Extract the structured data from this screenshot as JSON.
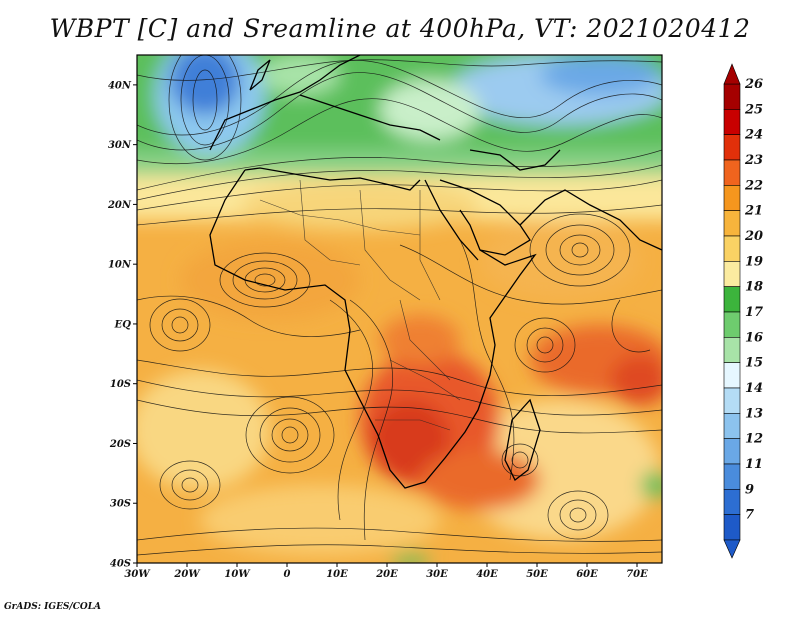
{
  "title": "WBPT [C] and Sreamline at 400hPa, VT: 2021020412",
  "credit": "GrADS: IGES/COLA",
  "map": {
    "lat_labels": [
      "40N",
      "30N",
      "20N",
      "10N",
      "EQ",
      "10S",
      "20S",
      "30S",
      "40S"
    ],
    "lon_labels": [
      "30W",
      "20W",
      "10W",
      "0",
      "10E",
      "20E",
      "30E",
      "40E",
      "50E",
      "60E",
      "70E"
    ],
    "lat_range": [
      -40,
      45
    ],
    "lon_range": [
      -30,
      75
    ]
  },
  "colorbar": {
    "levels": [
      "26",
      "25",
      "24",
      "23",
      "22",
      "21",
      "20",
      "19",
      "18",
      "17",
      "16",
      "15",
      "14",
      "13",
      "12",
      "11",
      "9",
      "7"
    ],
    "colors": [
      "#a50000",
      "#c80000",
      "#e1300a",
      "#f0641e",
      "#f5961e",
      "#f7b43c",
      "#fad264",
      "#fbeba0",
      "#3cb43c",
      "#6ecc6e",
      "#a8e3a8",
      "#e6f7ff",
      "#b4dcf5",
      "#8cc3ee",
      "#6aa8e6",
      "#4a8cdc",
      "#2d6ed2",
      "#1e5ac8"
    ]
  }
}
